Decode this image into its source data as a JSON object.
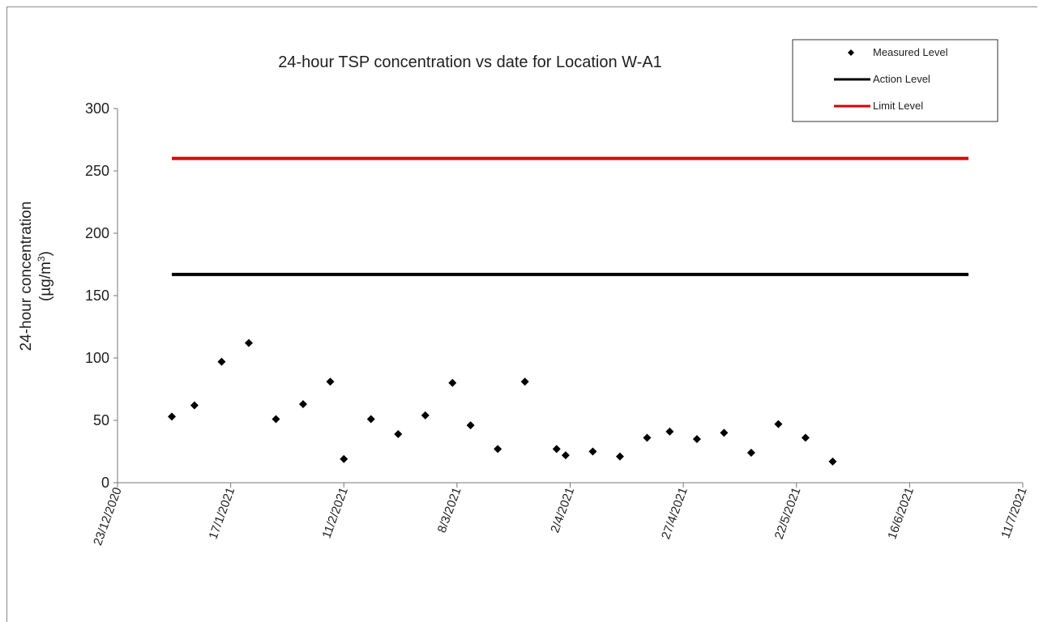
{
  "chart_data": {
    "type": "scatter",
    "title": "24-hour TSP concentration vs date for Location W-A1",
    "ylabel_line1": "24-hour concentration",
    "ylabel_line2_prefix": "(µg/m",
    "ylabel_line2_sup": "3",
    "ylabel_line2_suffix": ")",
    "ylim": [
      0,
      300
    ],
    "yticks": [
      "0",
      "50",
      "100",
      "150",
      "200",
      "250",
      "300"
    ],
    "xlim": [
      "2020-12-23",
      "2021-07-11"
    ],
    "xticks": [
      {
        "date": "2020-12-23",
        "label": "23/12/2020"
      },
      {
        "date": "2021-01-17",
        "label": "17/1/2021"
      },
      {
        "date": "2021-02-11",
        "label": "11/2/2021"
      },
      {
        "date": "2021-03-08",
        "label": "8/3/2021"
      },
      {
        "date": "2021-04-02",
        "label": "2/4/2021"
      },
      {
        "date": "2021-04-27",
        "label": "27/4/2021"
      },
      {
        "date": "2021-05-22",
        "label": "22/5/2021"
      },
      {
        "date": "2021-06-16",
        "label": "16/6/2021"
      },
      {
        "date": "2021-07-11",
        "label": "11/7/2021"
      }
    ],
    "series": [
      {
        "name": "Measured Level",
        "kind": "points",
        "color": "#000000",
        "x": [
          "2021-01-04",
          "2021-01-09",
          "2021-01-15",
          "2021-01-21",
          "2021-01-27",
          "2021-02-02",
          "2021-02-08",
          "2021-02-11",
          "2021-02-17",
          "2021-02-23",
          "2021-03-01",
          "2021-03-07",
          "2021-03-11",
          "2021-03-17",
          "2021-03-23",
          "2021-03-30",
          "2021-04-01",
          "2021-04-07",
          "2021-04-13",
          "2021-04-19",
          "2021-04-24",
          "2021-04-30",
          "2021-05-06",
          "2021-05-12",
          "2021-05-18",
          "2021-05-24",
          "2021-05-30"
        ],
        "y": [
          53,
          62,
          97,
          112,
          51,
          63,
          81,
          19,
          51,
          39,
          54,
          80,
          46,
          27,
          81,
          27,
          22,
          25,
          21,
          36,
          41,
          35,
          40,
          24,
          47,
          36,
          17
        ]
      },
      {
        "name": "Action Level",
        "kind": "line",
        "color": "#000000",
        "x": [
          "2021-01-04",
          "2021-06-29"
        ],
        "y": [
          167,
          167
        ]
      },
      {
        "name": "Limit Level",
        "kind": "line",
        "color": "#e00000",
        "x": [
          "2021-01-04",
          "2021-06-29"
        ],
        "y": [
          260,
          260
        ]
      }
    ],
    "legend_position": "top-right",
    "grid": false
  }
}
